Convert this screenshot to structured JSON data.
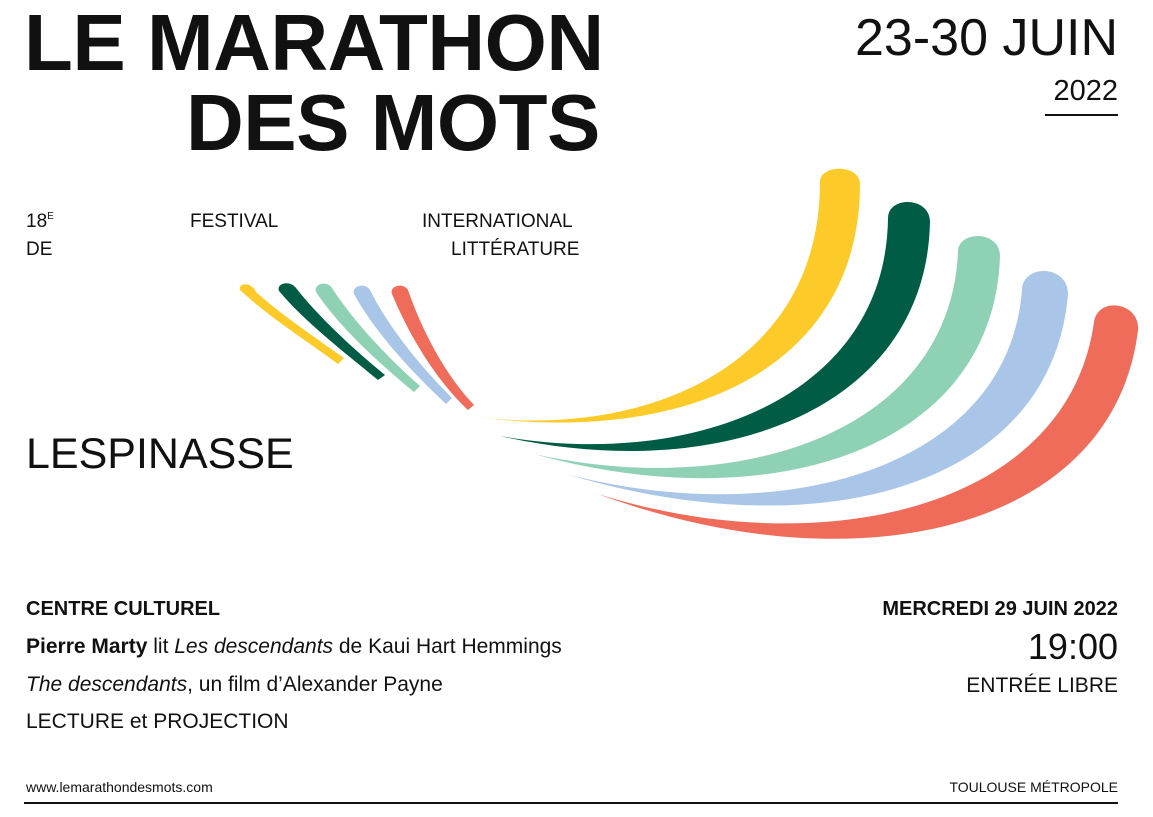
{
  "title": {
    "line1": "LE MARATHON",
    "line2": "DES MOTS"
  },
  "dates": {
    "range": "23-30 JUIN",
    "year": "2022"
  },
  "festival": {
    "edition_number": "18",
    "edition_suffix": "E",
    "de": "DE",
    "festival": "FESTIVAL",
    "international": "INTERNATIONAL",
    "litterature": "LITTÉRATURE"
  },
  "city": "LESPINASSE",
  "colors": {
    "yellow": "#FDCB29",
    "dark_green": "#005C45",
    "mint": "#8FD1B5",
    "light_blue": "#A9C5E8",
    "coral": "#EF6B5A"
  },
  "event": {
    "venue": "CENTRE CULTUREL",
    "reader_name": "Pierre Marty",
    "reads": " lit ",
    "book_title": "Les descendants",
    "by_author": " de Kaui Hart Hemmings",
    "film_title": "The descendants",
    "film_rest": ", un film d’Alexander Payne",
    "type_label": "LECTURE et PROJECTION",
    "day": "MERCREDI 29 JUIN 2022",
    "time": "19:00",
    "entry": "ENTRÉE LIBRE"
  },
  "footer": {
    "url": "www.lemarathondesmots.com",
    "sponsor": "TOULOUSE MÉTROPOLE"
  }
}
